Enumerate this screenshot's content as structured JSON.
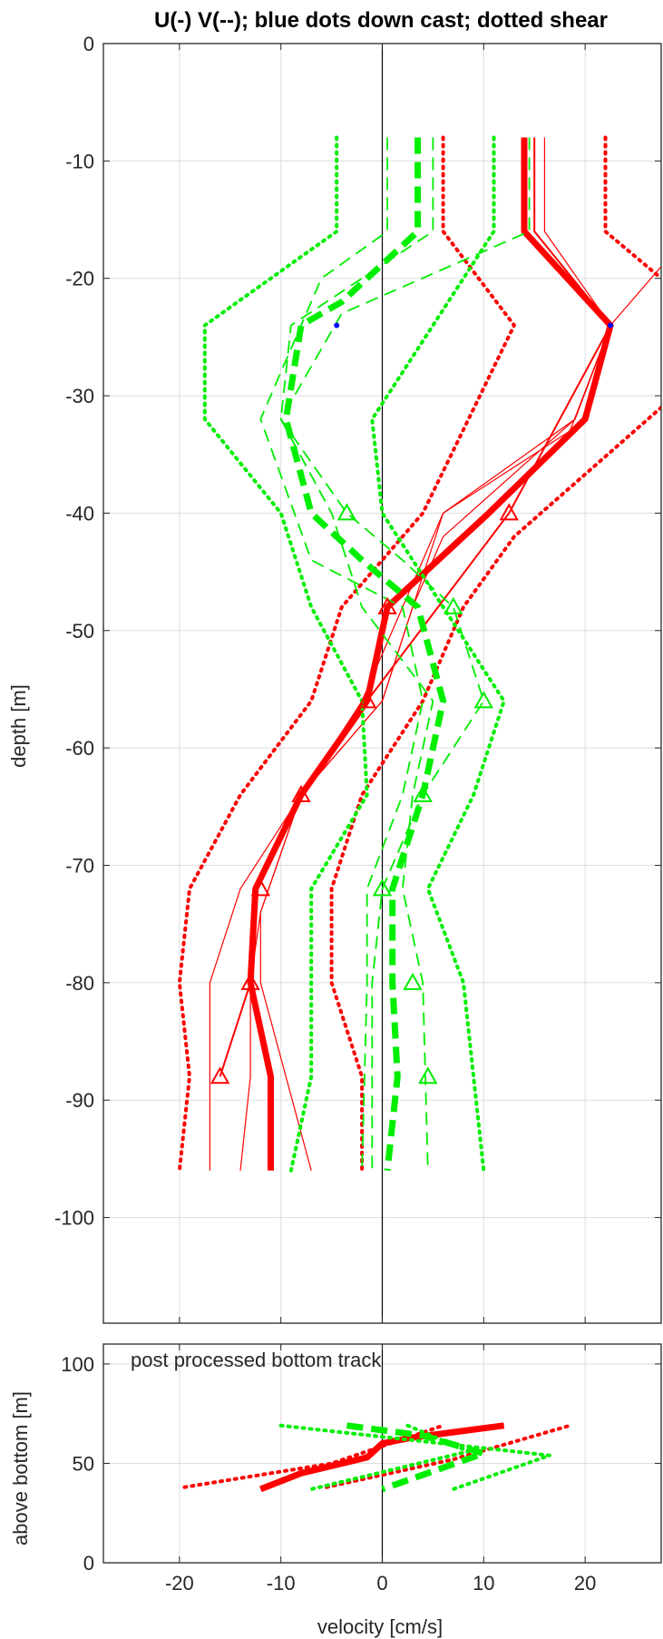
{
  "chart_data": [
    {
      "type": "line",
      "title": "U(-) V(--); blue dots down cast; dotted shear",
      "xlabel": "",
      "ylabel": "depth [m]",
      "xlim": [
        -27.5,
        27.5
      ],
      "ylim": [
        -109,
        0
      ],
      "xticks": [
        -20,
        -10,
        0,
        10,
        20
      ],
      "yticks": [
        0,
        -10,
        -20,
        -30,
        -40,
        -50,
        -60,
        -70,
        -80,
        -90,
        -100
      ],
      "ytick_labels": [
        "0",
        "-10",
        "-20",
        "-30",
        "-40",
        "-50",
        "-60",
        "-70",
        "-80",
        "-90",
        "-100"
      ],
      "grid": true,
      "series": [
        {
          "color": "#ff0000",
          "style": "solid",
          "width": 7,
          "points": [
            [
              14,
              -8
            ],
            [
              14,
              -16
            ],
            [
              22.5,
              -24
            ],
            [
              20,
              -32
            ],
            [
              10.5,
              -40
            ],
            [
              0.5,
              -48
            ],
            [
              -1.5,
              -56
            ],
            [
              -8,
              -64
            ],
            [
              -12.5,
              -72
            ],
            [
              -13,
              -80
            ],
            [
              -11,
              -88
            ],
            [
              -11,
              -96
            ]
          ]
        },
        {
          "color": "#ff0000",
          "style": "solid",
          "width": 2,
          "points": [
            [
              15,
              -8
            ],
            [
              15,
              -16
            ],
            [
              22.5,
              -24
            ],
            [
              12.5,
              -40
            ],
            [
              -1.5,
              -56
            ],
            [
              -8,
              -64
            ],
            [
              -12.5,
              -72
            ],
            [
              -13,
              -80
            ],
            [
              -16,
              -88
            ]
          ]
        },
        {
          "color": "#ff0000",
          "style": "solid",
          "width": 1.2,
          "points": [
            [
              16,
              -8
            ],
            [
              16,
              -16
            ],
            [
              22.5,
              -24
            ],
            [
              18.5,
              -33
            ],
            [
              6,
              -40
            ],
            [
              0,
              -56
            ],
            [
              -8,
              -64
            ],
            [
              -12,
              -74
            ],
            [
              -12,
              -80
            ],
            [
              -7,
              -96
            ]
          ]
        },
        {
          "color": "#ff0000",
          "style": "solid",
          "width": 1.2,
          "points": [
            [
              27.5,
              -19
            ],
            [
              22.5,
              -24
            ],
            [
              19,
              -32
            ],
            [
              6,
              -40
            ],
            [
              2,
              -48
            ],
            [
              -2,
              -56
            ],
            [
              -8,
              -64
            ],
            [
              -14,
              -72
            ],
            [
              -17,
              -80
            ],
            [
              -17,
              -96
            ]
          ]
        },
        {
          "color": "#ff0000",
          "style": "solid",
          "width": 1.2,
          "points": [
            [
              22.5,
              -24
            ],
            [
              19,
              -32
            ],
            [
              6,
              -42
            ],
            [
              3,
              -48
            ],
            [
              0,
              -56
            ],
            [
              -8,
              -64
            ],
            [
              -12,
              -74
            ],
            [
              -13,
              -80
            ],
            [
              -13,
              -88
            ],
            [
              -14,
              -96
            ]
          ]
        },
        {
          "color": "#ff0000",
          "style": "dotted",
          "width": 4,
          "points": [
            [
              6,
              -8
            ],
            [
              6,
              -16
            ],
            [
              13,
              -24
            ],
            [
              4,
              -40
            ],
            [
              -4,
              -48
            ],
            [
              -7,
              -56
            ],
            [
              -14,
              -64
            ],
            [
              -19,
              -72
            ],
            [
              -20,
              -80
            ],
            [
              -19,
              -88
            ],
            [
              -20,
              -96
            ]
          ]
        },
        {
          "color": "#ff0000",
          "style": "dotted",
          "width": 4,
          "points": [
            [
              22,
              -8
            ],
            [
              22,
              -16
            ],
            [
              27.5,
              -20
            ]
          ]
        },
        {
          "color": "#ff0000",
          "style": "dotted",
          "width": 4,
          "points": [
            [
              27.5,
              -31
            ],
            [
              13,
              -42
            ],
            [
              8,
              -48
            ],
            [
              4,
              -56
            ],
            [
              -2,
              -64
            ],
            [
              -5,
              -72
            ],
            [
              -5,
              -80
            ],
            [
              -2,
              -88
            ],
            [
              -2,
              -96
            ]
          ]
        },
        {
          "color": "#00ee00",
          "style": "dashed",
          "width": 7,
          "points": [
            [
              3.5,
              -8
            ],
            [
              3.5,
              -16
            ],
            [
              -4,
              -22
            ],
            [
              -8,
              -24
            ],
            [
              -9.5,
              -32
            ],
            [
              -7,
              -40
            ],
            [
              -2,
              -44
            ],
            [
              3.5,
              -48
            ],
            [
              6,
              -56
            ],
            [
              4,
              -64
            ],
            [
              1,
              -72
            ],
            [
              1,
              -80
            ],
            [
              1.5,
              -88
            ],
            [
              0.5,
              -96
            ]
          ]
        },
        {
          "color": "#00ee00",
          "style": "dashed",
          "width": 1.8,
          "points": [
            [
              14.5,
              -8
            ],
            [
              14.5,
              -16
            ],
            [
              -4,
              -23
            ],
            [
              -10,
              -32
            ],
            [
              -3.5,
              -40
            ],
            [
              2,
              -44
            ],
            [
              7,
              -48
            ],
            [
              10,
              -56
            ],
            [
              4,
              -64
            ],
            [
              0,
              -72
            ],
            [
              -1,
              -80
            ],
            [
              -1,
              -96
            ]
          ]
        },
        {
          "color": "#00ee00",
          "style": "dashed",
          "width": 1.8,
          "points": [
            [
              0.5,
              -8
            ],
            [
              0.5,
              -16
            ],
            [
              -6,
              -20
            ],
            [
              -8,
              -24
            ],
            [
              -12,
              -32
            ],
            [
              -7,
              -44
            ],
            [
              2,
              -48
            ],
            [
              4,
              -56
            ],
            [
              2,
              -64
            ],
            [
              -1.5,
              -72
            ],
            [
              -1.5,
              -80
            ],
            [
              -2,
              -96
            ]
          ]
        },
        {
          "color": "#00ee00",
          "style": "dashed",
          "width": 1.8,
          "points": [
            [
              5,
              -8
            ],
            [
              5,
              -16
            ],
            [
              -2,
              -20
            ],
            [
              -9,
              -24
            ],
            [
              -10,
              -32
            ],
            [
              -5,
              -40
            ],
            [
              -2,
              -48
            ],
            [
              5,
              -56
            ],
            [
              3,
              -64
            ],
            [
              2,
              -72
            ],
            [
              4,
              -80
            ],
            [
              4.5,
              -96
            ]
          ]
        },
        {
          "color": "#00ee00",
          "style": "dotted",
          "width": 4,
          "points": [
            [
              -4.5,
              -8
            ],
            [
              -4.5,
              -16
            ],
            [
              -17.5,
              -24
            ],
            [
              -17.5,
              -32
            ],
            [
              -10,
              -40
            ],
            [
              -7,
              -48
            ],
            [
              -2,
              -56
            ],
            [
              -1.5,
              -64
            ],
            [
              -7,
              -72
            ],
            [
              -7,
              -80
            ],
            [
              -7,
              -88
            ],
            [
              -9,
              -96
            ]
          ]
        },
        {
          "color": "#00ee00",
          "style": "dotted",
          "width": 4,
          "points": [
            [
              11,
              -8
            ],
            [
              11,
              -16
            ],
            [
              5,
              -24
            ],
            [
              -1,
              -32
            ],
            [
              0,
              -40
            ],
            [
              6,
              -48
            ],
            [
              12,
              -56
            ],
            [
              9,
              -64
            ],
            [
              4.5,
              -72
            ],
            [
              8,
              -80
            ],
            [
              9,
              -88
            ],
            [
              10,
              -96
            ]
          ]
        }
      ],
      "red_triangles": [
        [
          12.5,
          -40
        ],
        [
          0.5,
          -48
        ],
        [
          -1.5,
          -56
        ],
        [
          -8,
          -64
        ],
        [
          -12,
          -72
        ],
        [
          -13,
          -80
        ],
        [
          -16,
          -88
        ]
      ],
      "green_triangles": [
        [
          -3.5,
          -40
        ],
        [
          7,
          -48
        ],
        [
          10,
          -56
        ],
        [
          4,
          -64
        ],
        [
          0,
          -72
        ],
        [
          3,
          -80
        ],
        [
          4.5,
          -88
        ]
      ],
      "blue_dots": [
        [
          22.5,
          -24
        ],
        [
          -4.5,
          -24
        ]
      ]
    },
    {
      "type": "line",
      "title": "",
      "xlabel": "velocity [cm/s]",
      "ylabel": "above bottom [m]",
      "xlim": [
        -27.5,
        27.5
      ],
      "ylim": [
        0,
        110
      ],
      "xticks": [
        -20,
        -10,
        0,
        10,
        20
      ],
      "xtick_labels": [
        "-20",
        "-10",
        "0",
        "10",
        "20"
      ],
      "yticks": [
        0,
        50,
        100
      ],
      "ytick_labels": [
        "0",
        "50",
        "100"
      ],
      "annotation": "post processed bottom track",
      "grid": true,
      "series": [
        {
          "color": "#ff0000",
          "style": "solid",
          "width": 7,
          "points": [
            [
              -12,
              37
            ],
            [
              -8,
              45
            ],
            [
              -1.5,
              53
            ],
            [
              0,
              60
            ],
            [
              3,
              63
            ],
            [
              12,
              69
            ]
          ]
        },
        {
          "color": "#ff0000",
          "style": "dotted",
          "width": 4,
          "points": [
            [
              -19.5,
              38
            ],
            [
              -5,
              50
            ],
            [
              6,
              69
            ]
          ]
        },
        {
          "color": "#ff0000",
          "style": "dotted",
          "width": 4,
          "points": [
            [
              -5.5,
              38
            ],
            [
              7,
              52
            ],
            [
              18.5,
              69
            ]
          ]
        },
        {
          "color": "#00ee00",
          "style": "dashed",
          "width": 7,
          "points": [
            [
              -3.5,
              69
            ],
            [
              4,
              64
            ],
            [
              10,
              55
            ],
            [
              5,
              46
            ],
            [
              0,
              37
            ]
          ]
        },
        {
          "color": "#00ee00",
          "style": "dotted",
          "width": 4,
          "points": [
            [
              -10,
              69
            ],
            [
              16.5,
              54
            ],
            [
              7,
              37
            ]
          ]
        },
        {
          "color": "#00ee00",
          "style": "dotted",
          "width": 4,
          "points": [
            [
              2.5,
              69
            ],
            [
              8.5,
              56
            ],
            [
              -7,
              37
            ]
          ]
        }
      ]
    }
  ]
}
